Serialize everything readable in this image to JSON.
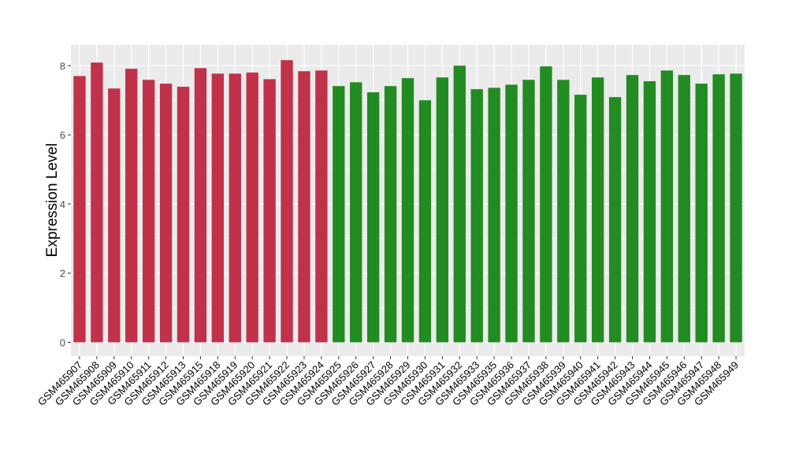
{
  "chart_data": {
    "type": "bar",
    "title": "",
    "xlabel": "",
    "ylabel": "Expression Level",
    "ylim": [
      -0.4,
      8.6
    ],
    "yticks": [
      0,
      2,
      4,
      6,
      8
    ],
    "grid": true,
    "colors": {
      "group1": "#C0314A",
      "group2": "#228B22",
      "panel": "#EBEBEB"
    },
    "categories": [
      "GSM465907",
      "GSM465908",
      "GSM465909",
      "GSM465910",
      "GSM465911",
      "GSM465912",
      "GSM465913",
      "GSM465915",
      "GSM465918",
      "GSM465919",
      "GSM465920",
      "GSM465921",
      "GSM465922",
      "GSM465923",
      "GSM465924",
      "GSM465925",
      "GSM465926",
      "GSM465927",
      "GSM465928",
      "GSM465929",
      "GSM465930",
      "GSM465931",
      "GSM465932",
      "GSM465933",
      "GSM465935",
      "GSM465936",
      "GSM465937",
      "GSM465938",
      "GSM465939",
      "GSM465940",
      "GSM465941",
      "GSM465942",
      "GSM465943",
      "GSM465944",
      "GSM465945",
      "GSM465946",
      "GSM465947",
      "GSM465948",
      "GSM465949"
    ],
    "values": [
      7.7,
      8.09,
      7.34,
      7.91,
      7.59,
      7.48,
      7.39,
      7.93,
      7.77,
      7.77,
      7.8,
      7.61,
      8.16,
      7.84,
      7.86,
      7.41,
      7.52,
      7.23,
      7.41,
      7.64,
      7.0,
      7.66,
      8.0,
      7.32,
      7.36,
      7.45,
      7.59,
      7.98,
      7.59,
      7.16,
      7.66,
      7.09,
      7.73,
      7.55,
      7.86,
      7.73,
      7.48,
      7.75,
      7.77
    ],
    "groups": [
      1,
      1,
      1,
      1,
      1,
      1,
      1,
      1,
      1,
      1,
      1,
      1,
      1,
      1,
      1,
      2,
      2,
      2,
      2,
      2,
      2,
      2,
      2,
      2,
      2,
      2,
      2,
      2,
      2,
      2,
      2,
      2,
      2,
      2,
      2,
      2,
      2,
      2,
      2
    ]
  }
}
